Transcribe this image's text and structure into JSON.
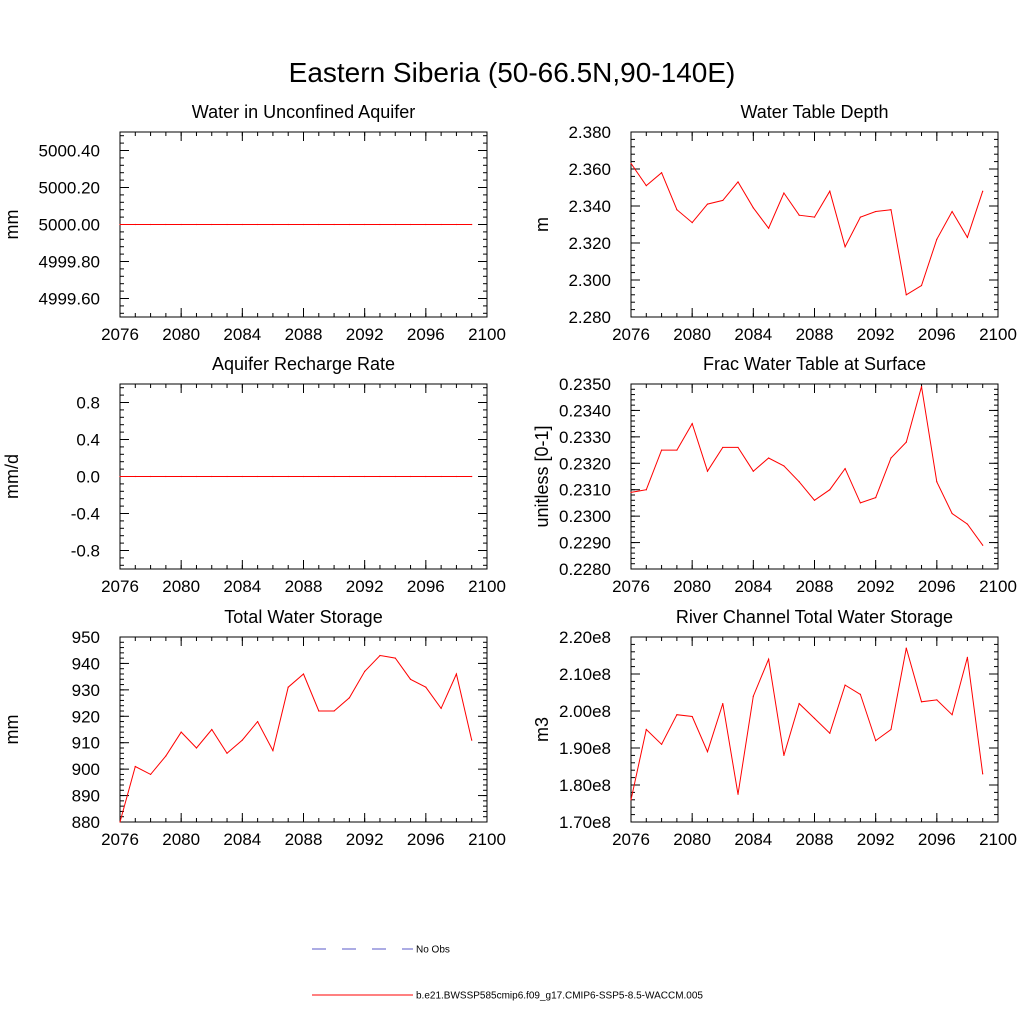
{
  "figure_title": "Eastern Siberia (50-66.5N,90-140E)",
  "legend": {
    "entries": [
      {
        "label": "No Obs",
        "color": "#5a5ac8",
        "style": "dashed"
      },
      {
        "label": "b.e21.BWSSP585cmip6.f09_g17.CMIP6-SSP5-8.5-WACCM.005",
        "color": "#ff0000",
        "style": "solid"
      }
    ]
  },
  "chart_data": [
    {
      "type": "line",
      "title": "Water in Unconfined Aquifer",
      "xlabel": "",
      "ylabel": "mm",
      "xlim": [
        2076,
        2100
      ],
      "ylim": [
        4999.5,
        5000.5
      ],
      "xticks": [
        2076,
        2080,
        2084,
        2088,
        2092,
        2096,
        2100
      ],
      "yticks": [
        4999.6,
        4999.8,
        5000.0,
        5000.2,
        5000.4
      ],
      "ytick_labels": [
        "4999.60",
        "4999.80",
        "5000.00",
        "5000.20",
        "5000.40"
      ],
      "x": [
        2076,
        2077,
        2078,
        2079,
        2080,
        2081,
        2082,
        2083,
        2084,
        2085,
        2086,
        2087,
        2088,
        2089,
        2090,
        2091,
        2092,
        2093,
        2094,
        2095,
        2096,
        2097,
        2098,
        2099
      ],
      "series": [
        {
          "color": "#ff0000",
          "values": [
            5000,
            5000,
            5000,
            5000,
            5000,
            5000,
            5000,
            5000,
            5000,
            5000,
            5000,
            5000,
            5000,
            5000,
            5000,
            5000,
            5000,
            5000,
            5000,
            5000,
            5000,
            5000,
            5000,
            5000
          ]
        }
      ]
    },
    {
      "type": "line",
      "title": "Water Table Depth",
      "xlabel": "",
      "ylabel": "m",
      "xlim": [
        2076,
        2100
      ],
      "ylim": [
        2.28,
        2.38
      ],
      "xticks": [
        2076,
        2080,
        2084,
        2088,
        2092,
        2096,
        2100
      ],
      "yticks": [
        2.28,
        2.3,
        2.32,
        2.34,
        2.36,
        2.38
      ],
      "ytick_labels": [
        "2.280",
        "2.300",
        "2.320",
        "2.340",
        "2.360",
        "2.380"
      ],
      "x": [
        2076,
        2077,
        2078,
        2079,
        2080,
        2081,
        2082,
        2083,
        2084,
        2085,
        2086,
        2087,
        2088,
        2089,
        2090,
        2091,
        2092,
        2093,
        2094,
        2095,
        2096,
        2097,
        2098,
        2099
      ],
      "series": [
        {
          "color": "#ff0000",
          "values": [
            2.363,
            2.351,
            2.358,
            2.338,
            2.331,
            2.341,
            2.343,
            2.353,
            2.339,
            2.328,
            2.347,
            2.335,
            2.334,
            2.348,
            2.318,
            2.334,
            2.337,
            2.338,
            2.292,
            2.297,
            2.322,
            2.337,
            2.323,
            2.348
          ]
        }
      ]
    },
    {
      "type": "line",
      "title": "Aquifer Recharge Rate",
      "xlabel": "",
      "ylabel": "mm/d",
      "xlim": [
        2076,
        2100
      ],
      "ylim": [
        -1.0,
        1.0
      ],
      "xticks": [
        2076,
        2080,
        2084,
        2088,
        2092,
        2096,
        2100
      ],
      "yticks": [
        -0.8,
        -0.4,
        0.0,
        0.4,
        0.8
      ],
      "ytick_labels": [
        "-0.8",
        "-0.4",
        "0.0",
        "0.4",
        "0.8"
      ],
      "x": [
        2076,
        2077,
        2078,
        2079,
        2080,
        2081,
        2082,
        2083,
        2084,
        2085,
        2086,
        2087,
        2088,
        2089,
        2090,
        2091,
        2092,
        2093,
        2094,
        2095,
        2096,
        2097,
        2098,
        2099
      ],
      "series": [
        {
          "color": "#ff0000",
          "values": [
            0,
            0,
            0,
            0,
            0,
            0,
            0,
            0,
            0,
            0,
            0,
            0,
            0,
            0,
            0,
            0,
            0,
            0,
            0,
            0,
            0,
            0,
            0,
            0
          ]
        }
      ]
    },
    {
      "type": "line",
      "title": "Frac Water Table at Surface",
      "xlabel": "",
      "ylabel": "unitless [0-1]",
      "xlim": [
        2076,
        2100
      ],
      "ylim": [
        0.228,
        0.235
      ],
      "xticks": [
        2076,
        2080,
        2084,
        2088,
        2092,
        2096,
        2100
      ],
      "yticks": [
        0.228,
        0.229,
        0.23,
        0.231,
        0.232,
        0.233,
        0.234,
        0.235
      ],
      "ytick_labels": [
        "0.2280",
        "0.2290",
        "0.2300",
        "0.2310",
        "0.2320",
        "0.2330",
        "0.2340",
        "0.2350"
      ],
      "x": [
        2076,
        2077,
        2078,
        2079,
        2080,
        2081,
        2082,
        2083,
        2084,
        2085,
        2086,
        2087,
        2088,
        2089,
        2090,
        2091,
        2092,
        2093,
        2094,
        2095,
        2096,
        2097,
        2098,
        2099
      ],
      "series": [
        {
          "color": "#ff0000",
          "values": [
            0.2309,
            0.231,
            0.2325,
            0.2325,
            0.2335,
            0.2317,
            0.2326,
            0.2326,
            0.2317,
            0.2322,
            0.2319,
            0.2313,
            0.2306,
            0.231,
            0.2318,
            0.2305,
            0.2307,
            0.2322,
            0.2328,
            0.2349,
            0.2313,
            0.2301,
            0.2297,
            0.2289
          ]
        }
      ]
    },
    {
      "type": "line",
      "title": "Total Water Storage",
      "xlabel": "",
      "ylabel": "mm",
      "xlim": [
        2076,
        2100
      ],
      "ylim": [
        880,
        950
      ],
      "xticks": [
        2076,
        2080,
        2084,
        2088,
        2092,
        2096,
        2100
      ],
      "yticks": [
        880,
        890,
        900,
        910,
        920,
        930,
        940,
        950
      ],
      "ytick_labels": [
        "880",
        "890",
        "900",
        "910",
        "920",
        "930",
        "940",
        "950"
      ],
      "x": [
        2076,
        2077,
        2078,
        2079,
        2080,
        2081,
        2082,
        2083,
        2084,
        2085,
        2086,
        2087,
        2088,
        2089,
        2090,
        2091,
        2092,
        2093,
        2094,
        2095,
        2096,
        2097,
        2098,
        2099
      ],
      "series": [
        {
          "color": "#ff0000",
          "values": [
            880,
            901,
            898,
            905,
            914,
            908,
            915,
            906,
            911,
            918,
            907,
            931,
            936,
            922,
            922,
            927,
            937,
            943,
            942,
            934,
            931,
            923,
            936,
            911
          ]
        }
      ]
    },
    {
      "type": "line",
      "title": "River Channel Total Water Storage",
      "xlabel": "",
      "ylabel": "m3",
      "xlim": [
        2076,
        2100
      ],
      "ylim": [
        170000000,
        220000000
      ],
      "xticks": [
        2076,
        2080,
        2084,
        2088,
        2092,
        2096,
        2100
      ],
      "yticks": [
        170000000,
        180000000,
        190000000,
        200000000,
        210000000,
        220000000
      ],
      "ytick_labels": [
        "1.70e8",
        "1.80e8",
        "1.90e8",
        "2.00e8",
        "2.10e8",
        "2.20e8"
      ],
      "x": [
        2076,
        2077,
        2078,
        2079,
        2080,
        2081,
        2082,
        2083,
        2084,
        2085,
        2086,
        2087,
        2088,
        2089,
        2090,
        2091,
        2092,
        2093,
        2094,
        2095,
        2096,
        2097,
        2098,
        2099
      ],
      "series": [
        {
          "color": "#ff0000",
          "values": [
            176000000,
            195000000,
            191000000,
            199000000,
            198500000,
            189000000,
            202000000,
            177500000,
            204000000,
            214000000,
            188000000,
            202000000,
            198000000,
            194000000,
            207000000,
            204500000,
            192000000,
            195000000,
            217000000,
            202500000,
            203000000,
            199000000,
            214500000,
            183000000
          ]
        }
      ]
    }
  ]
}
